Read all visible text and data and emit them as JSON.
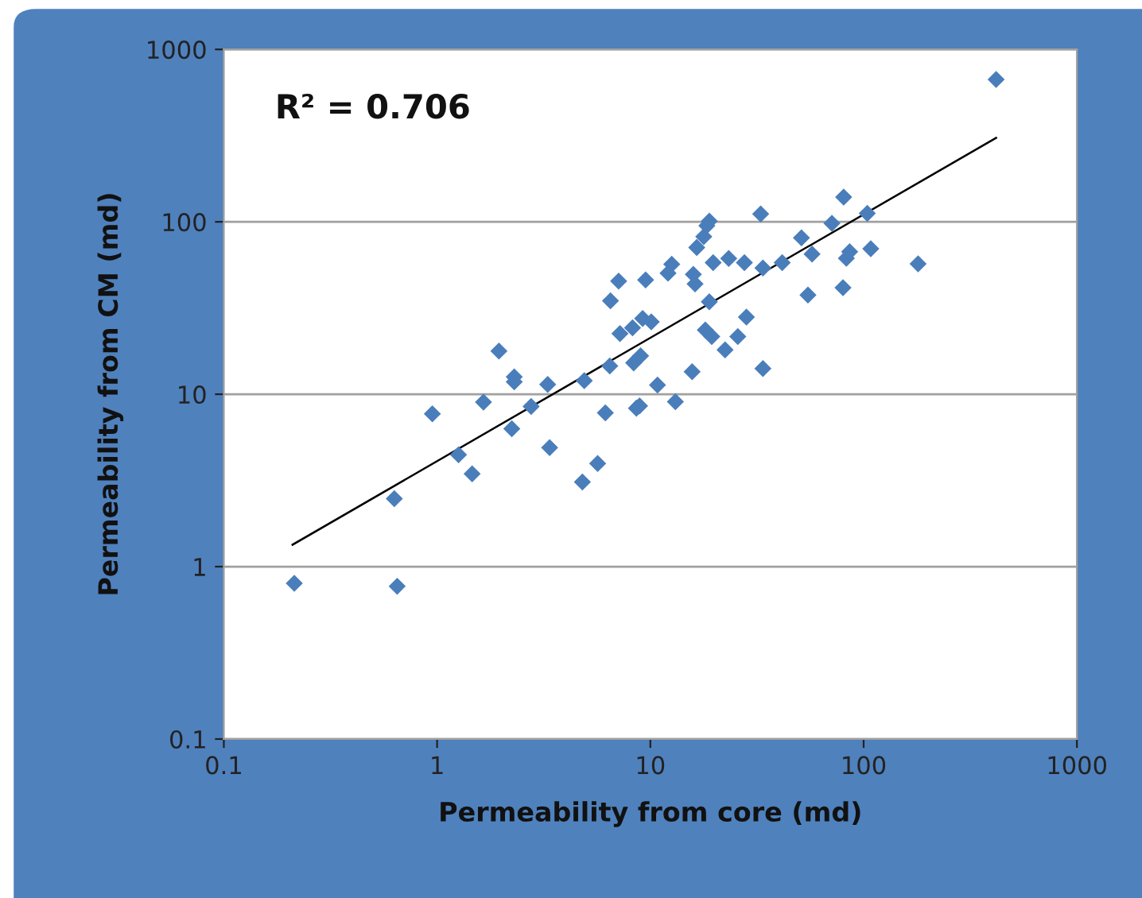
{
  "chart_data": {
    "type": "scatter",
    "xlabel": "Permeability from core (md)",
    "ylabel": "Permeability from CM (md)",
    "annotations": [
      "R² = 0.706"
    ],
    "log": "xy",
    "grid": "y",
    "xlim": [
      0.1,
      1000
    ],
    "ylim": [
      0.1,
      1000
    ],
    "xticks": [
      0.1,
      1,
      10,
      100,
      1000
    ],
    "yticks": [
      0.1,
      1,
      10,
      100,
      1000
    ],
    "series": [
      {
        "color": "#4a7ebb",
        "marker": "diamond",
        "x": [
          0.214,
          0.65,
          0.63,
          0.95,
          1.26,
          1.46,
          1.65,
          1.95,
          2.3,
          2.3,
          2.24,
          2.76,
          3.3,
          3.37,
          4.8,
          4.9,
          5.66,
          6.15,
          6.45,
          6.5,
          7.1,
          7.2,
          8.25,
          8.6,
          8.9,
          8.35,
          9.0,
          9.2,
          9.5,
          10.1,
          10.8,
          12.1,
          12.6,
          13.1,
          15.7,
          15.9,
          16.2,
          16.5,
          17.8,
          18.4,
          18.9,
          18.9,
          18.1,
          19.4,
          19.7,
          22.4,
          23.3,
          25.7,
          27.6,
          28.2,
          32.9,
          33.7,
          33.7,
          41.5,
          51.1,
          54.8,
          57.3,
          71,
          80.6,
          80,
          83,
          86,
          104,
          108,
          180,
          418
        ],
        "values": [
          0.8,
          0.77,
          2.48,
          7.7,
          4.45,
          3.45,
          9.0,
          17.8,
          12.6,
          11.8,
          6.3,
          8.5,
          11.4,
          4.9,
          3.1,
          12,
          3.96,
          7.8,
          14.6,
          34.8,
          45.3,
          22.5,
          24.3,
          8.3,
          8.55,
          15.2,
          16.7,
          27.5,
          46,
          26.3,
          11.3,
          50.4,
          56.8,
          9.05,
          13.5,
          49.6,
          43.6,
          71,
          82,
          95,
          101,
          34.4,
          23.6,
          21.6,
          58,
          18.1,
          61.3,
          21.6,
          58,
          28,
          111,
          54,
          14.1,
          58,
          80.7,
          37.6,
          65,
          98,
          139,
          41.5,
          61.5,
          67,
          112,
          69.8,
          57,
          670
        ]
      },
      {
        "type": "line",
        "color": "#000000",
        "marker": "none",
        "line_style": "solid",
        "x": [
          0.21,
          418
        ],
        "values": [
          1.34,
          307
        ]
      }
    ]
  }
}
